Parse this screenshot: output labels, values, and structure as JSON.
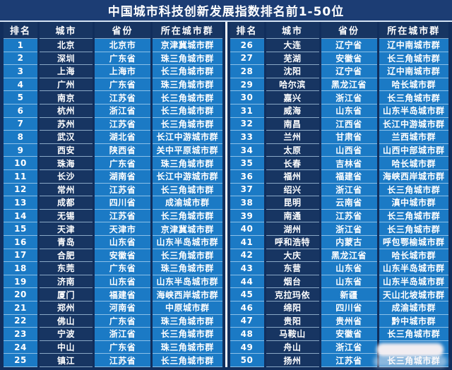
{
  "title": "中国城市科技创新发展指数排名前1-50位",
  "colors": {
    "background_navy": "#112e5c",
    "title_bar": "#1c3d74",
    "cell_blue": "#1b7ac5",
    "cell_dark_navy": "#173562",
    "row_separator": "#c8e6fa",
    "center_divider": "#f4f8fc",
    "text": "#ffffff"
  },
  "overlay": {
    "type": "blur-watermark-patch",
    "covers": "cluster cells of ranks 49-50"
  },
  "chart_data": {
    "type": "table",
    "title": "中国城市科技创新发展指数排名前1-50位",
    "columns": [
      "排名",
      "城市",
      "省份",
      "所在城市群"
    ],
    "layout": "two side-by-side halves: ranks 1-25 left, ranks 26-50 right",
    "rows": [
      [
        "1",
        "北京",
        "北京市",
        "京津冀城市群"
      ],
      [
        "2",
        "深圳",
        "广东省",
        "珠三角城市群"
      ],
      [
        "3",
        "上海",
        "上海市",
        "长三角城市群"
      ],
      [
        "4",
        "广州",
        "广东省",
        "珠三角城市群"
      ],
      [
        "5",
        "南京",
        "江苏省",
        "长三角城市群"
      ],
      [
        "6",
        "杭州",
        "浙江省",
        "长三角城市群"
      ],
      [
        "7",
        "苏州",
        "江苏省",
        "长三角城市群"
      ],
      [
        "8",
        "武汉",
        "湖北省",
        "长江中游城市群"
      ],
      [
        "9",
        "西安",
        "陕西省",
        "关中平原城市群"
      ],
      [
        "10",
        "珠海",
        "广东省",
        "珠三角城市群"
      ],
      [
        "11",
        "长沙",
        "湖南省",
        "长江中游城市群"
      ],
      [
        "12",
        "常州",
        "江苏省",
        "长三角城市群"
      ],
      [
        "13",
        "成都",
        "四川省",
        "成渝城市群"
      ],
      [
        "14",
        "无锡",
        "江苏省",
        "长三角城市群"
      ],
      [
        "15",
        "天津",
        "天津市",
        "京津冀城市群"
      ],
      [
        "16",
        "青岛",
        "山东省",
        "山东半岛城市群"
      ],
      [
        "17",
        "合肥",
        "安徽省",
        "长三角城市群"
      ],
      [
        "18",
        "东莞",
        "广东省",
        "珠三角城市群"
      ],
      [
        "19",
        "济南",
        "山东省",
        "山东半岛城市群"
      ],
      [
        "20",
        "厦门",
        "福建省",
        "海峡西岸城市群"
      ],
      [
        "21",
        "郑州",
        "河南省",
        "中原城市群"
      ],
      [
        "22",
        "佛山",
        "广东省",
        "珠三角城市群"
      ],
      [
        "23",
        "宁波",
        "浙江省",
        "长三角城市群"
      ],
      [
        "24",
        "中山",
        "广东省",
        "珠三角城市群"
      ],
      [
        "25",
        "镇江",
        "江苏省",
        "长三角城市群"
      ],
      [
        "26",
        "大连",
        "辽宁省",
        "辽中南城市群"
      ],
      [
        "27",
        "芜湖",
        "安徽省",
        "长三角城市群"
      ],
      [
        "28",
        "沈阳",
        "辽宁省",
        "辽中南城市群"
      ],
      [
        "29",
        "哈尔滨",
        "黑龙江省",
        "哈长城市群"
      ],
      [
        "30",
        "嘉兴",
        "浙江省",
        "长三角城市群"
      ],
      [
        "31",
        "威海",
        "山东省",
        "山东半岛城市群"
      ],
      [
        "32",
        "南昌",
        "江西省",
        "长江中游城市群"
      ],
      [
        "33",
        "兰州",
        "甘肃省",
        "兰西城市群"
      ],
      [
        "34",
        "太原",
        "山西省",
        "山西中部城市群"
      ],
      [
        "35",
        "长春",
        "吉林省",
        "哈长城市群"
      ],
      [
        "36",
        "福州",
        "福建省",
        "海峡西岸城市群"
      ],
      [
        "37",
        "绍兴",
        "浙江省",
        "长三角城市群"
      ],
      [
        "38",
        "昆明",
        "云南省",
        "滇中城市群"
      ],
      [
        "39",
        "南通",
        "江苏省",
        "长三角城市群"
      ],
      [
        "40",
        "湖州",
        "浙江省",
        "长三角城市群"
      ],
      [
        "41",
        "呼和浩特",
        "内蒙古",
        "呼包鄂榆城市群"
      ],
      [
        "42",
        "大庆",
        "黑龙江省",
        "哈长城市群"
      ],
      [
        "43",
        "东营",
        "山东省",
        "山东半岛城市群"
      ],
      [
        "44",
        "烟台",
        "山东省",
        "山东半岛城市群"
      ],
      [
        "45",
        "克拉玛依",
        "新疆",
        "天山北坡城市群"
      ],
      [
        "46",
        "绵阳",
        "四川省",
        "成渝城市群"
      ],
      [
        "47",
        "贵阳",
        "贵州省",
        "黔中城市群"
      ],
      [
        "48",
        "马鞍山",
        "安徽省",
        "长三角城市群"
      ],
      [
        "49",
        "舟山",
        "浙江省",
        ""
      ],
      [
        "50",
        "扬州",
        "江苏省",
        "长三角城市群"
      ]
    ]
  }
}
